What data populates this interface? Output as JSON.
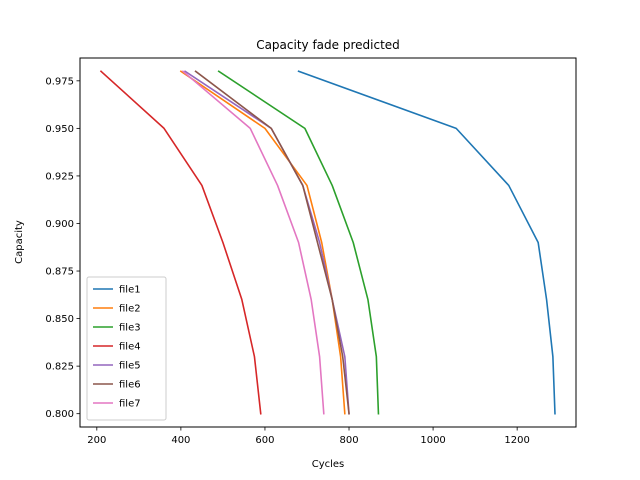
{
  "chart_data": {
    "type": "line",
    "title": "Capacity fade predicted",
    "xlabel": "Cycles",
    "ylabel": "Capacity",
    "xlim": [
      160,
      1340
    ],
    "ylim": [
      0.793,
      0.987
    ],
    "x_ticks": [
      200,
      400,
      600,
      800,
      1000,
      1200
    ],
    "y_ticks": [
      0.8,
      0.825,
      0.85,
      0.875,
      0.9,
      0.925,
      0.95,
      0.975
    ],
    "y_tick_labels": [
      "0.800",
      "0.825",
      "0.850",
      "0.875",
      "0.900",
      "0.925",
      "0.950",
      "0.975"
    ],
    "grid": false,
    "legend_position": "lower-left",
    "series": [
      {
        "name": "file1",
        "color": "#1f77b4",
        "x": [
          680,
          1055,
          1180,
          1250,
          1270,
          1285,
          1290
        ],
        "y": [
          0.98,
          0.95,
          0.92,
          0.89,
          0.86,
          0.83,
          0.8
        ]
      },
      {
        "name": "file2",
        "color": "#ff7f0e",
        "x": [
          400,
          600,
          700,
          735,
          760,
          780,
          790
        ],
        "y": [
          0.98,
          0.95,
          0.92,
          0.89,
          0.86,
          0.83,
          0.8
        ]
      },
      {
        "name": "file3",
        "color": "#2ca02c",
        "x": [
          490,
          695,
          760,
          810,
          845,
          865,
          870
        ],
        "y": [
          0.98,
          0.95,
          0.92,
          0.89,
          0.86,
          0.83,
          0.8
        ]
      },
      {
        "name": "file4",
        "color": "#d62728",
        "x": [
          210,
          360,
          450,
          500,
          545,
          575,
          590
        ],
        "y": [
          0.98,
          0.95,
          0.92,
          0.89,
          0.86,
          0.83,
          0.8
        ]
      },
      {
        "name": "file5",
        "color": "#9467bd",
        "x": [
          410,
          615,
          690,
          730,
          760,
          790,
          800
        ],
        "y": [
          0.98,
          0.95,
          0.92,
          0.89,
          0.86,
          0.83,
          0.8
        ]
      },
      {
        "name": "file6",
        "color": "#8c564b",
        "x": [
          435,
          615,
          690,
          725,
          760,
          785,
          800
        ],
        "y": [
          0.98,
          0.95,
          0.92,
          0.89,
          0.86,
          0.83,
          0.8
        ]
      },
      {
        "name": "file7",
        "color": "#e377c2",
        "x": [
          405,
          565,
          630,
          680,
          710,
          730,
          740
        ],
        "y": [
          0.98,
          0.95,
          0.92,
          0.89,
          0.86,
          0.83,
          0.8
        ]
      }
    ]
  }
}
